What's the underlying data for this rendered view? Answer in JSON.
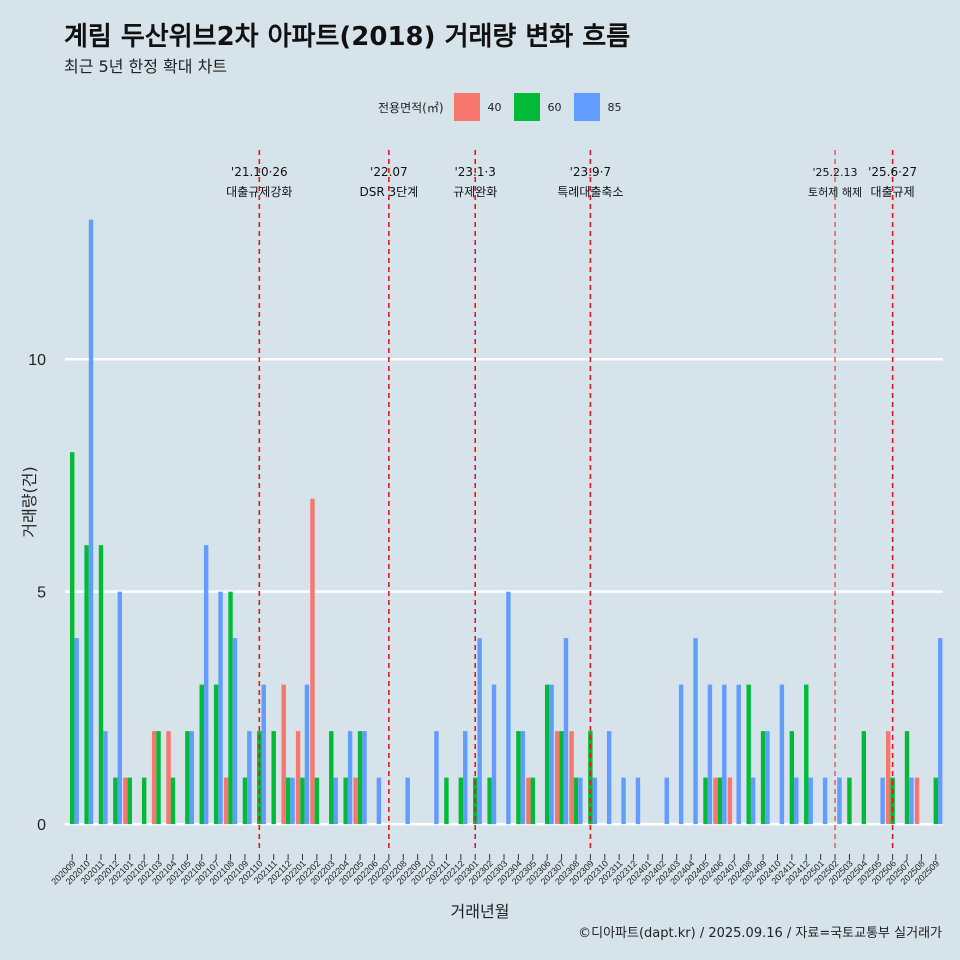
{
  "chart_data": {
    "type": "bar",
    "title": "계림 두산위브2차 아파트(2018) 거래량 변화 흐름",
    "subtitle": "최근 5년 한정 확대 차트",
    "xlabel": "거래년월",
    "ylabel": "거래량(건)",
    "caption": "©디아파트(dapt.kr) / 2025.09.16 / 자료=국토교통부 실거래가",
    "legend_title": "전용면적(㎡)",
    "legend_position": "top",
    "ylim": [
      -0.6,
      14.5
    ],
    "yticks": [
      0,
      5,
      10
    ],
    "grid": true,
    "colors": {
      "40": "#f8766d",
      "60": "#00ba38",
      "85": "#619cff"
    },
    "categories": [
      "202009",
      "202010",
      "202011",
      "202012",
      "202101",
      "202102",
      "202103",
      "202104",
      "202105",
      "202106",
      "202107",
      "202108",
      "202109",
      "202110",
      "202111",
      "202112",
      "202201",
      "202202",
      "202203",
      "202204",
      "202205",
      "202206",
      "202207",
      "202208",
      "202209",
      "202210",
      "202211",
      "202212",
      "202301",
      "202302",
      "202303",
      "202304",
      "202305",
      "202306",
      "202307",
      "202308",
      "202309",
      "202310",
      "202311",
      "202312",
      "202401",
      "202402",
      "202403",
      "202404",
      "202405",
      "202406",
      "202407",
      "202408",
      "202409",
      "202410",
      "202411",
      "202412",
      "202501",
      "202502",
      "202503",
      "202504",
      "202505",
      "202506",
      "202507",
      "202508",
      "202509"
    ],
    "series": [
      {
        "name": "40",
        "values": [
          0,
          0,
          0,
          0,
          1,
          0,
          2,
          2,
          0,
          0,
          0,
          1,
          0,
          0,
          0,
          3,
          2,
          7,
          0,
          0,
          1,
          0,
          0,
          0,
          0,
          0,
          0,
          0,
          0,
          0,
          0,
          0,
          1,
          0,
          2,
          2,
          0,
          0,
          0,
          0,
          0,
          0,
          0,
          0,
          0,
          1,
          1,
          0,
          0,
          0,
          0,
          0,
          0,
          0,
          0,
          0,
          0,
          2,
          0,
          1,
          0
        ]
      },
      {
        "name": "60",
        "values": [
          8,
          6,
          6,
          1,
          1,
          1,
          2,
          1,
          2,
          3,
          3,
          5,
          1,
          2,
          2,
          1,
          1,
          1,
          2,
          1,
          2,
          0,
          0,
          0,
          0,
          0,
          1,
          1,
          1,
          1,
          0,
          2,
          1,
          3,
          2,
          1,
          2,
          0,
          0,
          0,
          0,
          0,
          0,
          0,
          1,
          1,
          0,
          3,
          2,
          0,
          2,
          3,
          0,
          0,
          1,
          2,
          0,
          1,
          2,
          0,
          1
        ]
      },
      {
        "name": "85",
        "values": [
          4,
          13,
          2,
          5,
          0,
          0,
          0,
          0,
          2,
          6,
          5,
          4,
          2,
          3,
          0,
          1,
          3,
          0,
          1,
          2,
          2,
          1,
          0,
          1,
          0,
          2,
          0,
          2,
          4,
          3,
          5,
          2,
          0,
          3,
          4,
          1,
          1,
          2,
          1,
          1,
          0,
          1,
          3,
          4,
          3,
          3,
          3,
          1,
          2,
          3,
          1,
          1,
          1,
          1,
          0,
          0,
          1,
          0,
          1,
          0,
          4
        ]
      }
    ],
    "events": [
      {
        "date": "'21.10·26",
        "label": "대출규제강화",
        "cat": "202110",
        "emph": true
      },
      {
        "date": "'22.07",
        "label": "DSR 3단계",
        "cat": "202207",
        "emph": true
      },
      {
        "date": "'23.1·3",
        "label": "규제완화",
        "cat": "202301",
        "emph": true
      },
      {
        "date": "'23.9·7",
        "label": "특례대출축소",
        "cat": "202309",
        "emph": true
      },
      {
        "date": "'25.2.13",
        "label": "토허제 해제",
        "cat": "202502",
        "emph": false
      },
      {
        "date": "'25.6·27",
        "label": "대출규제",
        "cat": "202506",
        "emph": true
      }
    ]
  }
}
